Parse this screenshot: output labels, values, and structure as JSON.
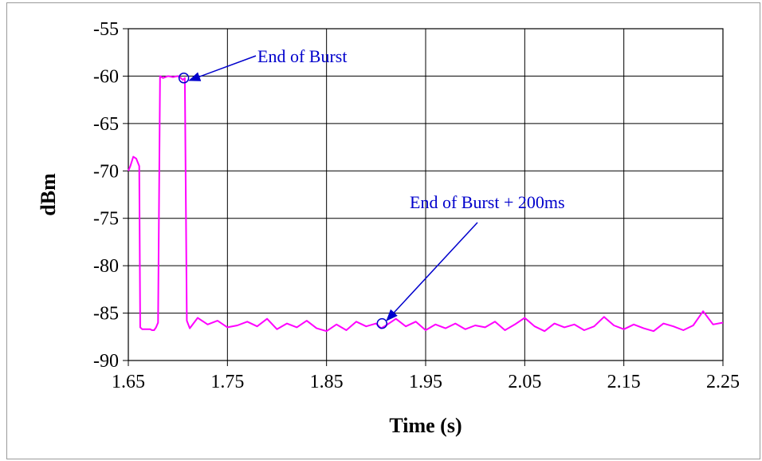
{
  "chart_data": {
    "type": "line",
    "xlabel": "Time (s)",
    "ylabel": "dBm",
    "xlim": [
      1.65,
      2.25
    ],
    "ylim": [
      -90,
      -55
    ],
    "x_ticks": [
      1.65,
      1.75,
      1.85,
      1.95,
      2.05,
      2.15,
      2.25
    ],
    "y_ticks": [
      -55,
      -60,
      -65,
      -70,
      -75,
      -80,
      -85,
      -90
    ],
    "x_tick_labels": [
      "1.65",
      "1.75",
      "1.85",
      "1.95",
      "2.05",
      "2.15",
      "2.25"
    ],
    "y_tick_labels": [
      "-55",
      "-60",
      "-65",
      "-70",
      "-75",
      "-80",
      "-85",
      "-90"
    ],
    "grid": true,
    "series": [
      {
        "color": "#ff00ff",
        "x": [
          1.65,
          1.652,
          1.655,
          1.658,
          1.661,
          1.662,
          1.664,
          1.672,
          1.674,
          1.676,
          1.678,
          1.68,
          1.682,
          1.685,
          1.69,
          1.695,
          1.7,
          1.703,
          1.705,
          1.707,
          1.709,
          1.712,
          1.72,
          1.73,
          1.74,
          1.75,
          1.76,
          1.77,
          1.78,
          1.79,
          1.8,
          1.81,
          1.82,
          1.83,
          1.84,
          1.85,
          1.86,
          1.87,
          1.88,
          1.89,
          1.9,
          1.905,
          1.91,
          1.92,
          1.93,
          1.94,
          1.95,
          1.96,
          1.97,
          1.98,
          1.99,
          2.0,
          2.01,
          2.02,
          2.03,
          2.04,
          2.05,
          2.06,
          2.07,
          2.08,
          2.09,
          2.1,
          2.11,
          2.12,
          2.13,
          2.14,
          2.15,
          2.16,
          2.17,
          2.18,
          2.19,
          2.2,
          2.21,
          2.22,
          2.23,
          2.24,
          2.25
        ],
        "y": [
          -70,
          -69.5,
          -68.5,
          -68.7,
          -69.5,
          -86.5,
          -86.7,
          -86.7,
          -86.8,
          -86.8,
          -86.5,
          -86,
          -60,
          -60.2,
          -60,
          -60.1,
          -60,
          -60.2,
          -60.4,
          -60.2,
          -85.8,
          -86.6,
          -85.5,
          -86.2,
          -85.8,
          -86.5,
          -86.3,
          -85.9,
          -86.4,
          -85.6,
          -86.7,
          -86.1,
          -86.5,
          -85.8,
          -86.6,
          -86.9,
          -86.2,
          -86.8,
          -85.9,
          -86.4,
          -86.1,
          -86.6,
          -86.3,
          -85.6,
          -86.4,
          -85.9,
          -86.8,
          -86.2,
          -86.6,
          -86.1,
          -86.7,
          -86.3,
          -86.5,
          -85.9,
          -86.8,
          -86.2,
          -85.5,
          -86.4,
          -86.9,
          -86.1,
          -86.5,
          -86.2,
          -86.8,
          -86.4,
          -85.4,
          -86.3,
          -86.7,
          -86.2,
          -86.6,
          -86.9,
          -86.1,
          -86.4,
          -86.8,
          -86.3,
          -84.8,
          -86.2,
          -86
        ]
      }
    ],
    "annotations": [
      {
        "text": "End of Burst",
        "point": [
          1.706,
          -60.2
        ]
      },
      {
        "text": "End of Burst + 200ms",
        "point": [
          1.906,
          -86.1
        ]
      }
    ]
  }
}
